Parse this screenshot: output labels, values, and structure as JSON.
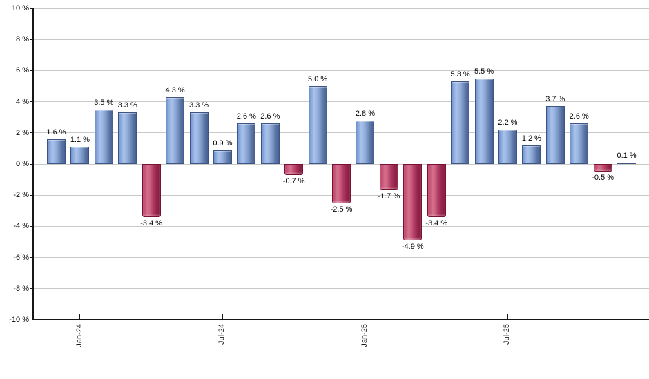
{
  "chart_data": {
    "type": "bar",
    "title": "",
    "xlabel": "",
    "ylabel": "",
    "unit": "%",
    "values": [
      1.6,
      1.1,
      3.5,
      3.3,
      -3.4,
      4.3,
      3.3,
      0.9,
      2.6,
      2.6,
      -0.7,
      5.0,
      -2.5,
      2.8,
      -1.7,
      -4.9,
      -3.4,
      5.3,
      5.5,
      2.2,
      1.2,
      3.7,
      2.6,
      -0.5,
      0.1
    ],
    "bar_labels": [
      "1.6 %",
      "1.1 %",
      "3.5 %",
      "3.3 %",
      "-3.4 %",
      "4.3 %",
      "3.3 %",
      "0.9 %",
      "2.6 %",
      "2.6 %",
      "-0.7 %",
      "5.0 %",
      "-2.5 %",
      "2.8 %",
      "-1.7 %",
      "-4.9 %",
      "-3.4 %",
      "5.3 %",
      "5.5 %",
      "2.2 %",
      "1.2 %",
      "3.7 %",
      "2.6 %",
      "-0.5 %",
      "0.1 %"
    ],
    "x_ticks": [
      {
        "label": "Jan-24",
        "bar_index": 1
      },
      {
        "label": "Jul-24",
        "bar_index": 7
      },
      {
        "label": "Jan-25",
        "bar_index": 13
      },
      {
        "label": "Jul-25",
        "bar_index": 19
      }
    ],
    "y_tick_labels": [
      "10 %",
      "8 %",
      "6 %",
      "4 %",
      "2 %",
      "0 %",
      "-2 %",
      "-4 %",
      "-6 %",
      "-8 %",
      "-10 %"
    ],
    "y_tick_values": [
      10,
      8,
      6,
      4,
      2,
      0,
      -2,
      -4,
      -6,
      -8,
      -10
    ],
    "ylim": [
      -10,
      10
    ],
    "grid": true,
    "legend": "none",
    "colors": {
      "positive_bar": "#7e9ac8",
      "positive_bar_highlight": "#a9c2ea",
      "positive_bar_edge": "#3d5484",
      "negative_bar": "#ad3760",
      "negative_bar_highlight": "#d4718c",
      "negative_bar_edge": "#761232",
      "gridline": "#c9c9c9",
      "axis": "#161616",
      "label_text": "#000000",
      "background": "#ffffff"
    }
  }
}
